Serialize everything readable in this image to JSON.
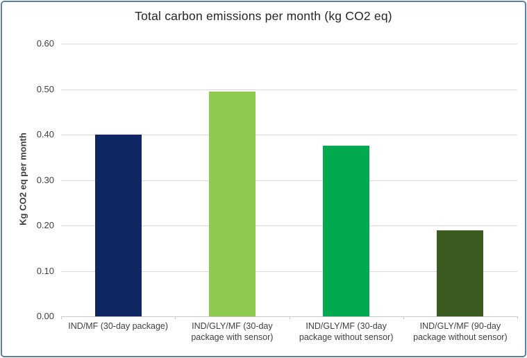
{
  "frame": {
    "border_color": "#5B7FA8",
    "background": "#FFFFFF"
  },
  "chart_data": {
    "type": "bar",
    "title": "Total carbon emissions per month (kg CO2 eq)",
    "xlabel": "",
    "ylabel": "Kg CO2 eq per month",
    "categories": [
      "IND/MF (30-day package)",
      "IND/GLY/MF (30-day package with sensor)",
      "IND/GLY/MF (30-day package without sensor)",
      "IND/GLY/MF (90-day package without sensor)"
    ],
    "category_label_lines": [
      [
        "IND/MF (30-day package)"
      ],
      [
        "IND/GLY/MF (30-day",
        "package with sensor)"
      ],
      [
        "IND/GLY/MF (30-day",
        "package without sensor)"
      ],
      [
        "IND/GLY/MF (90-day",
        "package without sensor)"
      ]
    ],
    "values": [
      0.4,
      0.495,
      0.375,
      0.19
    ],
    "bar_colors": [
      "#0E2763",
      "#8ECA50",
      "#03A94F",
      "#3B5B21"
    ],
    "ylim": [
      0,
      0.6
    ],
    "ytick_step": 0.1,
    "ytick_labels": [
      "0.00",
      "0.10",
      "0.20",
      "0.30",
      "0.40",
      "0.50",
      "0.60"
    ],
    "grid": true,
    "gridline_color": "#D9D9D9",
    "axis_line_color": "#C9C9C9",
    "text_color": "#3F3F3F",
    "legend": "none"
  }
}
